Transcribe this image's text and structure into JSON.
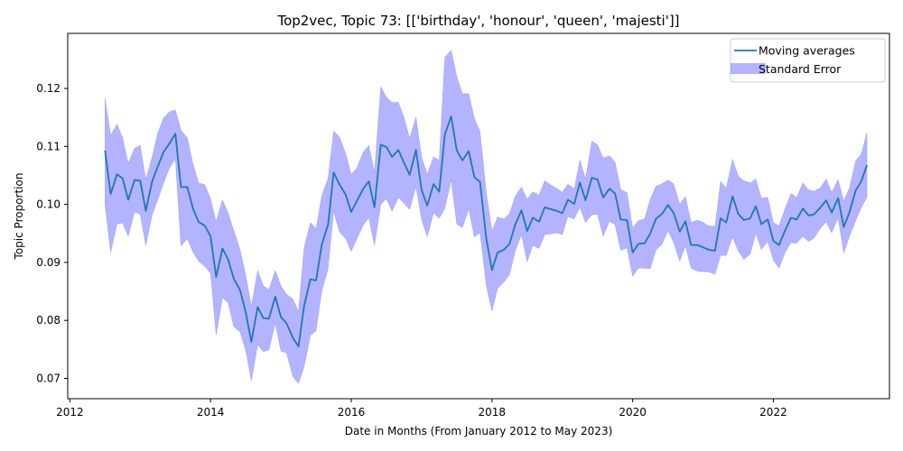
{
  "chart_data": {
    "type": "line",
    "title": "Top2vec, Topic 73: [['birthday', 'honour', 'queen', 'majesti']]",
    "xlabel": "Date in Months (From January 2012 to May 2023)",
    "ylabel": "Topic Proportion",
    "xlim": [
      2011.97,
      2023.65
    ],
    "ylim": [
      0.0665,
      0.1295
    ],
    "x_ticks": [
      2012,
      2014,
      2016,
      2018,
      2020,
      2022
    ],
    "y_ticks": [
      0.07,
      0.08,
      0.09,
      0.1,
      0.11,
      0.12
    ],
    "y_tick_labels": [
      "0.07",
      "0.08",
      "0.09",
      "0.10",
      "0.11",
      "0.12"
    ],
    "grid": false,
    "legend": {
      "placement": "top-right",
      "entries": [
        "Moving averages",
        "Standard Error"
      ]
    },
    "colors": {
      "line": "#1f77b4",
      "band": "#8080ff"
    },
    "series": [
      {
        "name": "Moving averages",
        "x": [
          2012.5,
          2012.58,
          2012.67,
          2012.75,
          2012.83,
          2012.92,
          2013.0,
          2013.08,
          2013.17,
          2013.25,
          2013.33,
          2013.42,
          2013.5,
          2013.58,
          2013.67,
          2013.75,
          2013.83,
          2013.92,
          2014.0,
          2014.08,
          2014.17,
          2014.25,
          2014.33,
          2014.42,
          2014.5,
          2014.58,
          2014.67,
          2014.75,
          2014.83,
          2014.92,
          2015.0,
          2015.08,
          2015.17,
          2015.25,
          2015.33,
          2015.42,
          2015.5,
          2015.58,
          2015.67,
          2015.75,
          2015.83,
          2015.92,
          2016.0,
          2016.08,
          2016.17,
          2016.25,
          2016.33,
          2016.42,
          2016.5,
          2016.58,
          2016.67,
          2016.75,
          2016.83,
          2016.92,
          2017.0,
          2017.08,
          2017.17,
          2017.25,
          2017.33,
          2017.42,
          2017.5,
          2017.58,
          2017.67,
          2017.75,
          2017.83,
          2017.92,
          2018.0,
          2018.08,
          2018.17,
          2018.25,
          2018.33,
          2018.42,
          2018.5,
          2018.58,
          2018.67,
          2018.75,
          2018.83,
          2018.92,
          2019.0,
          2019.08,
          2019.17,
          2019.25,
          2019.33,
          2019.42,
          2019.5,
          2019.58,
          2019.67,
          2019.75,
          2019.83,
          2019.92,
          2020.0,
          2020.08,
          2020.17,
          2020.25,
          2020.33,
          2020.42,
          2020.5,
          2020.58,
          2020.67,
          2020.75,
          2020.83,
          2020.92,
          2021.0,
          2021.08,
          2021.17,
          2021.25,
          2021.33,
          2021.42,
          2021.5,
          2021.58,
          2021.67,
          2021.75,
          2021.83,
          2021.92,
          2022.0,
          2022.08,
          2022.17,
          2022.25,
          2022.33,
          2022.42,
          2022.5,
          2022.58,
          2022.67,
          2022.75,
          2022.83,
          2022.92,
          2023.0,
          2023.08,
          2023.17,
          2023.25,
          2023.33
        ],
        "values": [
          0.1093,
          0.1018,
          0.1052,
          0.1045,
          0.1008,
          0.1042,
          0.1041,
          0.0989,
          0.104,
          0.1065,
          0.109,
          0.1106,
          0.1122,
          0.103,
          0.103,
          0.0993,
          0.097,
          0.0963,
          0.0945,
          0.0875,
          0.0924,
          0.0905,
          0.0872,
          0.0852,
          0.0814,
          0.0763,
          0.0823,
          0.0804,
          0.0803,
          0.0841,
          0.0806,
          0.0795,
          0.077,
          0.0755,
          0.0825,
          0.0871,
          0.0869,
          0.093,
          0.0965,
          0.1055,
          0.1035,
          0.1017,
          0.0987,
          0.1006,
          0.1027,
          0.104,
          0.0995,
          0.1103,
          0.1099,
          0.1082,
          0.1094,
          0.1072,
          0.1051,
          0.1094,
          0.1025,
          0.0998,
          0.1035,
          0.1022,
          0.112,
          0.1152,
          0.1093,
          0.1076,
          0.1092,
          0.1047,
          0.1039,
          0.0941,
          0.0887,
          0.0917,
          0.0922,
          0.0932,
          0.0965,
          0.099,
          0.0954,
          0.0977,
          0.097,
          0.0995,
          0.0992,
          0.0989,
          0.0985,
          0.1008,
          0.1001,
          0.1038,
          0.1007,
          0.1046,
          0.1043,
          0.1012,
          0.1027,
          0.1019,
          0.0974,
          0.0973,
          0.0917,
          0.0932,
          0.0933,
          0.095,
          0.0975,
          0.0984,
          0.0999,
          0.0986,
          0.0953,
          0.0971,
          0.093,
          0.093,
          0.0926,
          0.0922,
          0.092,
          0.0976,
          0.0969,
          0.1014,
          0.0984,
          0.0973,
          0.0976,
          0.0997,
          0.0966,
          0.0974,
          0.0937,
          0.093,
          0.0956,
          0.0977,
          0.0974,
          0.0993,
          0.0981,
          0.0983,
          0.0995,
          0.1007,
          0.0986,
          0.1011,
          0.0961,
          0.0986,
          0.1024,
          0.104,
          0.1068
        ]
      },
      {
        "name": "Standard Error",
        "x": [
          2012.5,
          2012.58,
          2012.67,
          2012.75,
          2012.83,
          2012.92,
          2013.0,
          2013.08,
          2013.17,
          2013.25,
          2013.33,
          2013.42,
          2013.5,
          2013.58,
          2013.67,
          2013.75,
          2013.83,
          2013.92,
          2014.0,
          2014.08,
          2014.17,
          2014.25,
          2014.33,
          2014.42,
          2014.5,
          2014.58,
          2014.67,
          2014.75,
          2014.83,
          2014.92,
          2015.0,
          2015.08,
          2015.17,
          2015.25,
          2015.33,
          2015.42,
          2015.5,
          2015.58,
          2015.67,
          2015.75,
          2015.83,
          2015.92,
          2016.0,
          2016.08,
          2016.17,
          2016.25,
          2016.33,
          2016.42,
          2016.5,
          2016.58,
          2016.67,
          2016.75,
          2016.83,
          2016.92,
          2017.0,
          2017.08,
          2017.17,
          2017.25,
          2017.33,
          2017.42,
          2017.5,
          2017.58,
          2017.67,
          2017.75,
          2017.83,
          2017.92,
          2018.0,
          2018.08,
          2018.17,
          2018.25,
          2018.33,
          2018.42,
          2018.5,
          2018.58,
          2018.67,
          2018.75,
          2018.83,
          2018.92,
          2019.0,
          2019.08,
          2019.17,
          2019.25,
          2019.33,
          2019.42,
          2019.5,
          2019.58,
          2019.67,
          2019.75,
          2019.83,
          2019.92,
          2020.0,
          2020.08,
          2020.17,
          2020.25,
          2020.33,
          2020.42,
          2020.5,
          2020.58,
          2020.67,
          2020.75,
          2020.83,
          2020.92,
          2021.0,
          2021.08,
          2021.17,
          2021.25,
          2021.33,
          2021.42,
          2021.5,
          2021.58,
          2021.67,
          2021.75,
          2021.83,
          2021.92,
          2022.0,
          2022.08,
          2022.17,
          2022.25,
          2022.33,
          2022.42,
          2022.5,
          2022.58,
          2022.67,
          2022.75,
          2022.83,
          2022.92,
          2023.0,
          2023.08,
          2023.17,
          2023.25,
          2023.33
        ],
        "upper": [
          0.1183,
          0.112,
          0.1138,
          0.1115,
          0.1071,
          0.1097,
          0.1102,
          0.1043,
          0.1082,
          0.1123,
          0.1149,
          0.116,
          0.1163,
          0.1128,
          0.1115,
          0.107,
          0.1037,
          0.1034,
          0.101,
          0.097,
          0.1008,
          0.0985,
          0.0955,
          0.0922,
          0.0878,
          0.0824,
          0.0886,
          0.086,
          0.0853,
          0.0886,
          0.086,
          0.0845,
          0.0837,
          0.0815,
          0.0925,
          0.0969,
          0.0958,
          0.1015,
          0.1045,
          0.1126,
          0.1117,
          0.1088,
          0.1052,
          0.1063,
          0.109,
          0.1102,
          0.1055,
          0.1203,
          0.1185,
          0.1176,
          0.1176,
          0.115,
          0.1114,
          0.1151,
          0.1082,
          0.1052,
          0.1082,
          0.1076,
          0.1254,
          0.1266,
          0.1221,
          0.1191,
          0.1191,
          0.1148,
          0.1126,
          0.102,
          0.0954,
          0.0978,
          0.0975,
          0.0984,
          0.1014,
          0.103,
          0.1009,
          0.1022,
          0.1016,
          0.1041,
          0.1034,
          0.1028,
          0.1021,
          0.1035,
          0.1027,
          0.1077,
          0.1044,
          0.1109,
          0.1103,
          0.108,
          0.1084,
          0.1073,
          0.1026,
          0.102,
          0.0959,
          0.0972,
          0.0975,
          0.1009,
          0.1031,
          0.1036,
          0.1042,
          0.1036,
          0.1,
          0.1014,
          0.0969,
          0.0973,
          0.0969,
          0.0963,
          0.0962,
          0.104,
          0.1028,
          0.1078,
          0.1049,
          0.1041,
          0.1037,
          0.1044,
          0.1011,
          0.1012,
          0.0969,
          0.0963,
          0.0994,
          0.1019,
          0.1012,
          0.1037,
          0.1025,
          0.1023,
          0.1029,
          0.1044,
          0.1021,
          0.1043,
          0.1006,
          0.1028,
          0.1075,
          0.1087,
          0.1124
        ],
        "lower": [
          0.1,
          0.0917,
          0.0966,
          0.0968,
          0.0945,
          0.0987,
          0.0983,
          0.0929,
          0.0982,
          0.1008,
          0.1036,
          0.1064,
          0.1078,
          0.0928,
          0.0941,
          0.0918,
          0.0902,
          0.0893,
          0.0881,
          0.0775,
          0.0839,
          0.083,
          0.0789,
          0.078,
          0.0748,
          0.0696,
          0.0758,
          0.0746,
          0.0749,
          0.0795,
          0.0747,
          0.0744,
          0.0703,
          0.0691,
          0.072,
          0.0774,
          0.0782,
          0.085,
          0.0889,
          0.0989,
          0.0953,
          0.0941,
          0.0919,
          0.0941,
          0.0964,
          0.0977,
          0.0929,
          0.1,
          0.101,
          0.0988,
          0.1012,
          0.1002,
          0.0991,
          0.1031,
          0.0974,
          0.0944,
          0.0985,
          0.0976,
          0.0993,
          0.1042,
          0.0966,
          0.096,
          0.0992,
          0.0944,
          0.0951,
          0.086,
          0.0816,
          0.0855,
          0.0866,
          0.0879,
          0.0919,
          0.0948,
          0.0901,
          0.0929,
          0.0924,
          0.0948,
          0.0949,
          0.0951,
          0.0948,
          0.0979,
          0.0975,
          0.0995,
          0.0969,
          0.0982,
          0.0983,
          0.0945,
          0.0971,
          0.0965,
          0.0921,
          0.0925,
          0.0876,
          0.089,
          0.089,
          0.0889,
          0.0921,
          0.0932,
          0.0955,
          0.0935,
          0.0902,
          0.0929,
          0.089,
          0.0885,
          0.0884,
          0.0884,
          0.0879,
          0.0912,
          0.0912,
          0.0944,
          0.092,
          0.0905,
          0.0914,
          0.095,
          0.0922,
          0.0936,
          0.0904,
          0.089,
          0.0918,
          0.0934,
          0.0933,
          0.0945,
          0.0936,
          0.0942,
          0.0959,
          0.097,
          0.0951,
          0.0977,
          0.0916,
          0.0944,
          0.0972,
          0.0995,
          0.1012
        ]
      }
    ]
  }
}
